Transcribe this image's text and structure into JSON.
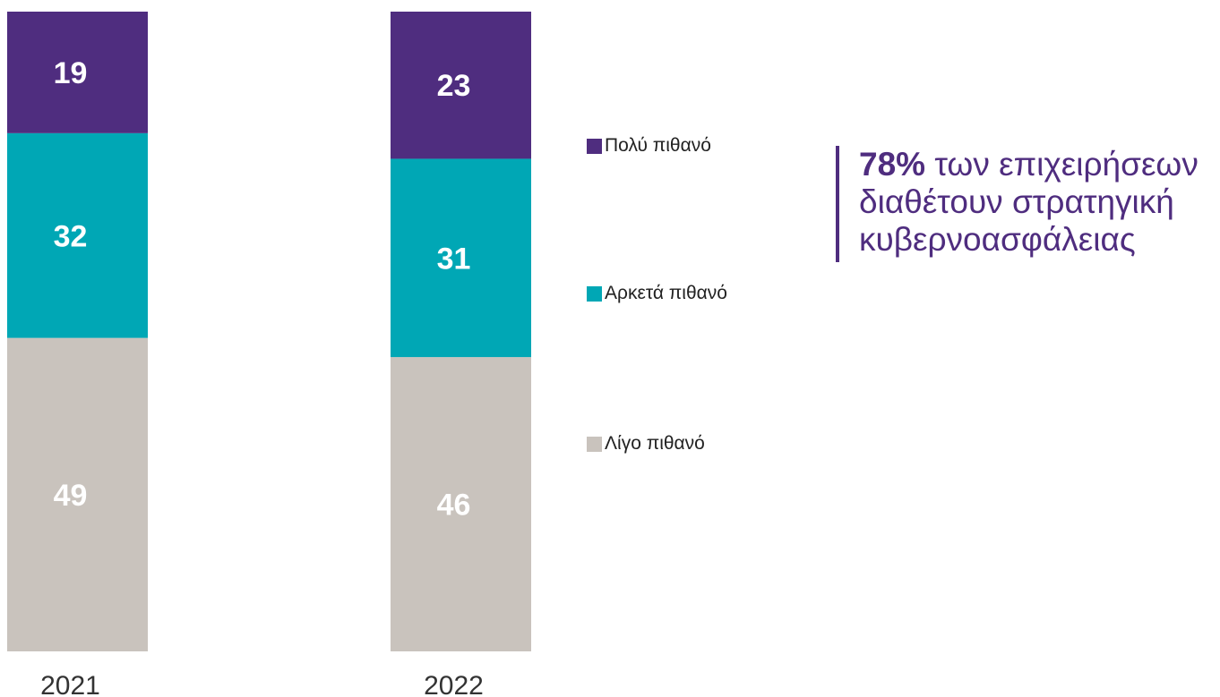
{
  "chart_data": {
    "type": "bar",
    "stacked": true,
    "categories": [
      "2021",
      "2022"
    ],
    "series": [
      {
        "name": "Λίγο πιθανό",
        "values": [
          49,
          46
        ],
        "color": "#c9c3bd"
      },
      {
        "name": "Αρκετά πιθανό",
        "values": [
          32,
          31
        ],
        "color": "#00a7b5"
      },
      {
        "name": "Πολύ πιθανό",
        "values": [
          19,
          23
        ],
        "color": "#4f2d7f"
      }
    ],
    "ylim": [
      0,
      100
    ],
    "grid": false,
    "legend_position": "right",
    "legend": [
      "Πολύ πιθανό",
      "Αρκετά πιθανό",
      "Λίγο πιθανό"
    ]
  },
  "callout": {
    "highlight": "78%",
    "text": " των επιχειρήσεων διαθέτουν στρατηγική κυβερνοασφάλειας",
    "accent_color": "#4f2d7f"
  }
}
